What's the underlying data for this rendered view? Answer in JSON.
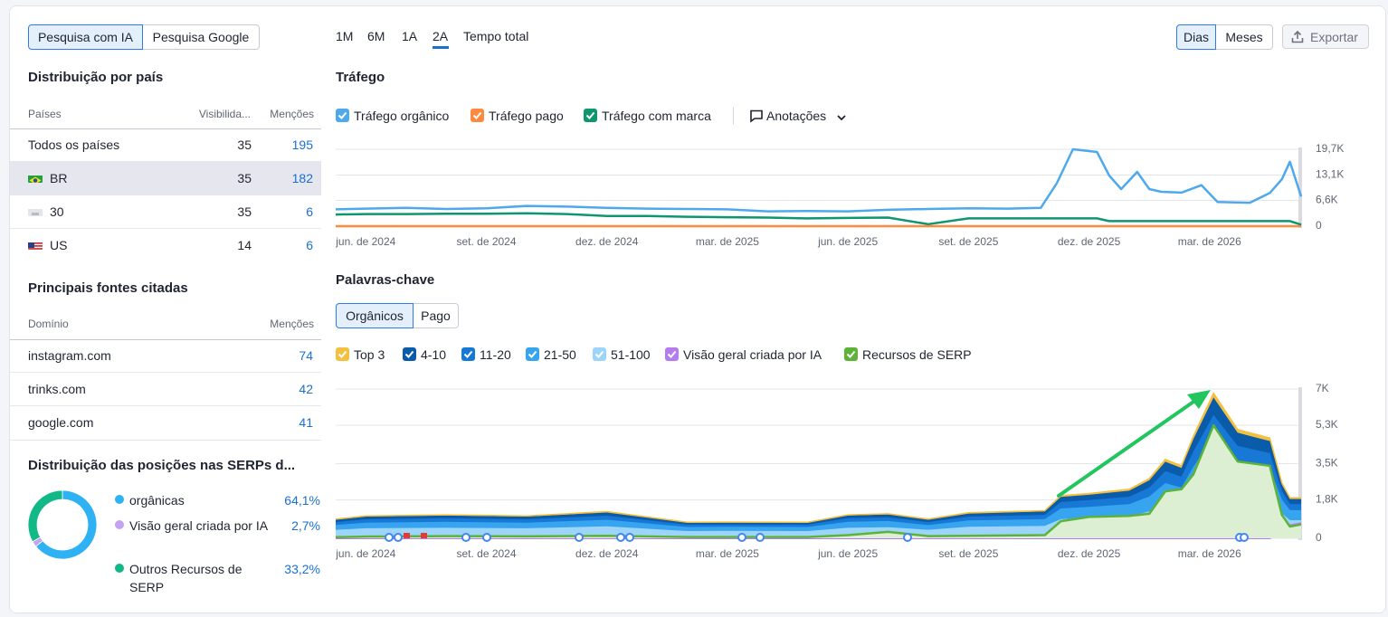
{
  "tabs": {
    "items": [
      "Pesquisa com IA",
      "Pesquisa Google"
    ],
    "active": 0
  },
  "periods": {
    "items": [
      "1M",
      "6M",
      "1A",
      "2A",
      "Tempo total"
    ],
    "active": 3
  },
  "view_toggle": {
    "items": [
      "Dias",
      "Meses"
    ],
    "active": 0
  },
  "export": "Exportar",
  "country": {
    "title": "Distribuição por país",
    "headers": [
      "Países",
      "Visibilida...",
      "Menções"
    ],
    "rows": [
      {
        "name": "Todos os países",
        "visibility": 35,
        "mentions": 195
      },
      {
        "name": "BR",
        "visibility": 35,
        "mentions": 182
      },
      {
        "name": "30",
        "visibility": 35,
        "mentions": 6
      },
      {
        "name": "US",
        "visibility": 14,
        "mentions": 6
      }
    ]
  },
  "sources": {
    "title": "Principais fontes citadas",
    "headers": [
      "Domínio",
      "Menções"
    ],
    "rows": [
      {
        "domain": "instagram.com",
        "mentions": 74
      },
      {
        "domain": "trinks.com",
        "mentions": 42
      },
      {
        "domain": "google.com",
        "mentions": 41
      }
    ]
  },
  "serp_distribution": {
    "title": "Distribuição das posições nas SERPs d...",
    "type": "donut",
    "items": [
      {
        "name": "orgânicas",
        "value": 64.1,
        "value_label": "64,1%",
        "color": "#2fb2f3"
      },
      {
        "name": "Visão geral criada por IA",
        "value": 2.7,
        "value_label": "2,7%",
        "color": "#c8a2f2"
      },
      {
        "name": "Outros Recursos de SERP",
        "value": 33.2,
        "value_label": "33,2%",
        "color": "#12b886"
      }
    ]
  },
  "traffic": {
    "title": "Tráfego",
    "type": "line",
    "annotations_label": "Anotações",
    "x": [
      -0.75,
      0,
      1,
      2,
      3,
      4,
      5,
      6,
      7,
      8,
      9,
      10,
      11,
      12,
      13,
      14,
      15,
      16,
      16.8,
      17.2,
      17.6,
      18.2,
      18.5,
      18.8,
      19.2,
      19.5,
      19.8,
      20.3,
      20.8,
      21.2,
      22,
      22.5,
      22.8,
      23,
      23.28
    ],
    "xlim": [
      -0.75,
      23.28
    ],
    "xticks": [
      {
        "value": 0,
        "label": "jun. de 2024"
      },
      {
        "value": 3,
        "label": "set. de 2024"
      },
      {
        "value": 6,
        "label": "dez. de 2024"
      },
      {
        "value": 9,
        "label": "mar. de 2025"
      },
      {
        "value": 12,
        "label": "jun. de 2025"
      },
      {
        "value": 15,
        "label": "set. de 2025"
      },
      {
        "value": 18,
        "label": "dez. de 2025"
      },
      {
        "value": 21,
        "label": "mar. de 2026"
      }
    ],
    "ylim": [
      0,
      19700
    ],
    "yticks": [
      0,
      {
        "value": 6600,
        "label": "6,6K"
      },
      {
        "value": 13100,
        "label": "13,1K"
      },
      {
        "value": 19700,
        "label": "19,7K"
      }
    ],
    "grid": true,
    "series": [
      {
        "name": "Tráfego orgânico",
        "color": "#4ea9ec",
        "values": [
          4300,
          4500,
          4700,
          4400,
          4600,
          5200,
          5000,
          4700,
          4500,
          4400,
          4300,
          3800,
          3900,
          3800,
          4200,
          4400,
          4600,
          4500,
          4700,
          11000,
          19700,
          19000,
          13000,
          9500,
          13900,
          9500,
          8800,
          8600,
          10500,
          6200,
          6000,
          8500,
          12000,
          16500,
          7600
        ]
      },
      {
        "name": "Tráfego pago",
        "color": "#ff8a3d",
        "values": [
          0,
          0,
          0,
          0,
          0,
          0,
          0,
          0,
          0,
          0,
          0,
          0,
          0,
          0,
          0,
          0,
          0,
          0,
          0,
          0,
          0,
          0,
          0,
          0,
          0,
          0,
          0,
          0,
          0,
          0,
          0,
          0,
          0,
          0,
          0
        ]
      },
      {
        "name": "Tráfego com marca",
        "color": "#0f9570",
        "values": [
          3000,
          3100,
          3100,
          3200,
          3200,
          3300,
          3100,
          2600,
          2600,
          2400,
          2300,
          2200,
          2000,
          2100,
          2200,
          500,
          2000,
          2000,
          2000,
          2000,
          2000,
          2000,
          1300,
          1300,
          1300,
          1300,
          1300,
          1300,
          1300,
          1300,
          1300,
          1300,
          1300,
          1300,
          400
        ]
      }
    ]
  },
  "keywords": {
    "title": "Palavras-chave",
    "type": "area",
    "toggle": {
      "items": [
        "Orgânicos",
        "Pago"
      ],
      "active": 0
    },
    "x": [
      -0.75,
      0,
      2,
      4,
      6,
      8,
      9,
      11,
      12,
      13,
      14,
      15,
      16,
      16.9,
      17.3,
      18,
      19,
      19.5,
      19.9,
      20.3,
      20.6,
      21.1,
      21.7,
      22.1,
      22.5,
      22.8,
      23,
      23.28
    ],
    "xlim": [
      -0.75,
      23.28
    ],
    "xticks": [
      {
        "value": 0,
        "label": "jun. de 2024"
      },
      {
        "value": 3,
        "label": "set. de 2024"
      },
      {
        "value": 6,
        "label": "dez. de 2024"
      },
      {
        "value": 9,
        "label": "mar. de 2025"
      },
      {
        "value": 12,
        "label": "jun. de 2025"
      },
      {
        "value": 15,
        "label": "set. de 2025"
      },
      {
        "value": 18,
        "label": "dez. de 2025"
      },
      {
        "value": 21,
        "label": "mar. de 2026"
      }
    ],
    "ylim": [
      0,
      7000
    ],
    "yticks": [
      0,
      {
        "value": 1800,
        "label": "1,8K"
      },
      {
        "value": 3500,
        "label": "3,5K"
      },
      {
        "value": 5300,
        "label": "5,3K"
      },
      {
        "value": 7000,
        "label": "7K"
      }
    ],
    "grid": true,
    "series": [
      {
        "name": "Top 3",
        "color": "#f4c03f",
        "stacked": true,
        "values": [
          30,
          30,
          30,
          30,
          40,
          20,
          20,
          20,
          30,
          30,
          30,
          40,
          40,
          40,
          60,
          60,
          70,
          80,
          110,
          100,
          140,
          200,
          150,
          150,
          140,
          80,
          60,
          60
        ]
      },
      {
        "name": "4-10",
        "color": "#0b5bab",
        "stacked": true,
        "values": [
          110,
          130,
          130,
          130,
          150,
          90,
          90,
          90,
          130,
          140,
          110,
          140,
          150,
          160,
          240,
          250,
          280,
          340,
          440,
          410,
          580,
          820,
          610,
          590,
          560,
          310,
          230,
          230
        ]
      },
      {
        "name": "11-20",
        "color": "#1778d6",
        "stacked": true,
        "values": [
          130,
          160,
          170,
          160,
          190,
          110,
          110,
          110,
          170,
          170,
          140,
          180,
          190,
          200,
          300,
          320,
          350,
          420,
          560,
          510,
          720,
          1020,
          770,
          740,
          710,
          390,
          290,
          290
        ]
      },
      {
        "name": "21-50",
        "color": "#36a4ef",
        "stacked": true,
        "values": [
          230,
          260,
          280,
          260,
          310,
          190,
          190,
          190,
          280,
          290,
          220,
          300,
          310,
          320,
          500,
          520,
          570,
          700,
          920,
          850,
          1200,
          1700,
          1270,
          1220,
          1170,
          650,
          470,
          470
        ]
      },
      {
        "name": "51-100",
        "color": "#9dd4fa",
        "stacked": true,
        "values": [
          400,
          470,
          490,
          470,
          560,
          340,
          350,
          340,
          490,
          520,
          400,
          540,
          560,
          580,
          900,
          950,
          1030,
          1260,
          1670,
          1530,
          2160,
          3060,
          2300,
          2200,
          2120,
          1170,
          850,
          850
        ]
      },
      {
        "name": "Visão geral criada por IA",
        "color": "#b57cf0",
        "stacked": false,
        "values": [
          10,
          10,
          10,
          10,
          10,
          10,
          10,
          10,
          10,
          10,
          10,
          10,
          10,
          10,
          10,
          10,
          10,
          10,
          10,
          10,
          10,
          10,
          10,
          10,
          10,
          300,
          600,
          700
        ]
      },
      {
        "name": "Recursos de SERP",
        "color": "#5cb338",
        "stacked": false,
        "filled": true,
        "values": [
          50,
          80,
          100,
          90,
          120,
          60,
          60,
          60,
          150,
          300,
          100,
          120,
          130,
          150,
          800,
          1000,
          1050,
          1150,
          2200,
          2300,
          3000,
          5300,
          3600,
          3500,
          3400,
          1100,
          550,
          650
        ]
      }
    ]
  }
}
